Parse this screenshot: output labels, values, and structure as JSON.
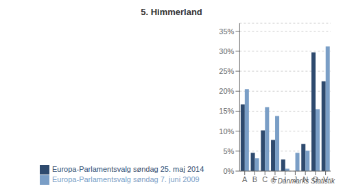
{
  "chart_data": {
    "type": "bar",
    "title": "5. Himmerland",
    "categories": [
      "A",
      "B",
      "C",
      "F",
      "I",
      "J",
      "N",
      "O",
      "V"
    ],
    "series": [
      {
        "name": "Europa-Parlamentsvalg søndag  25. maj 2014",
        "color": "#2e4a6e",
        "values": [
          16.7,
          4.6,
          10.2,
          7.8,
          2.9,
          0.0,
          6.8,
          29.7,
          22.5
        ]
      },
      {
        "name": "Europa-Parlamentsvalg søndag  7. juni 2009",
        "color": "#7a9ec6",
        "values": [
          20.5,
          3.2,
          16.0,
          13.8,
          0.6,
          4.6,
          5.1,
          15.5,
          31.2
        ]
      }
    ],
    "ylim": [
      0,
      37
    ],
    "yticks": [
      {
        "value": 0,
        "label": "0%"
      },
      {
        "value": 5,
        "label": "5%"
      },
      {
        "value": 10,
        "label": "10%"
      },
      {
        "value": 15,
        "label": "15%"
      },
      {
        "value": 20,
        "label": "20%"
      },
      {
        "value": 25,
        "label": "25%"
      },
      {
        "value": 30,
        "label": "30%"
      },
      {
        "value": 35,
        "label": "35%"
      }
    ],
    "grid": true,
    "legend": "bottom",
    "annotations": [
      "© Danmarks Statistik"
    ]
  }
}
